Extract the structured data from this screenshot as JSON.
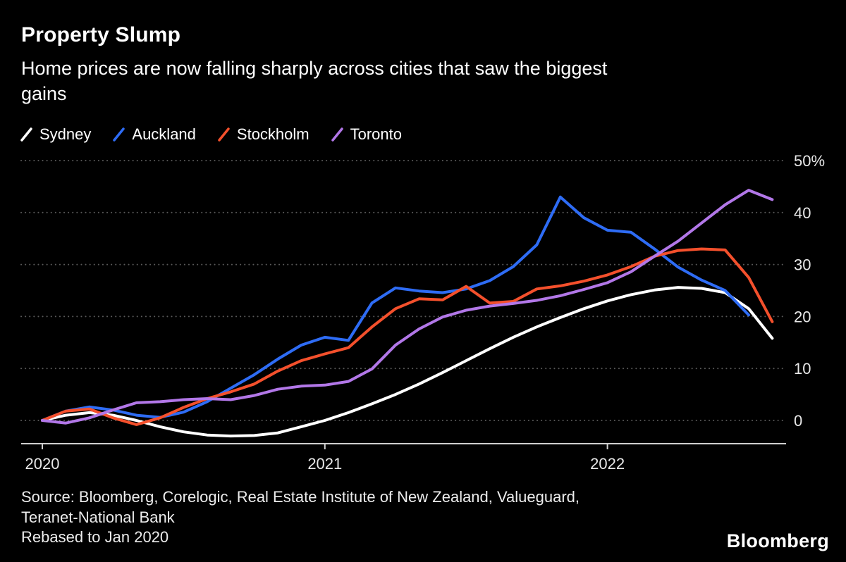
{
  "header": {
    "title": "Property Slump",
    "subtitle_line1": "Home prices are now falling sharply across cities that saw the biggest",
    "subtitle_line2": "gains"
  },
  "footer": {
    "source_line1": "Source: Bloomberg, Corelogic, Real Estate Institute of New Zealand, Valueguard,",
    "source_line2": "Teranet-National Bank",
    "note": "Rebased to Jan 2020",
    "logo": "Bloomberg"
  },
  "chart_data": {
    "type": "line",
    "title": "Property Slump",
    "subtitle": "Home prices are now falling sharply across cities that saw the biggest gains",
    "note": "Rebased to Jan 2020",
    "grid": "dotted horizontal gridlines",
    "legend_position": "top-left",
    "x_axis": {
      "unit": "months since Jan 2020",
      "ticks": [
        {
          "month": 0,
          "label": "2020"
        },
        {
          "month": 12,
          "label": "2021"
        },
        {
          "month": 24,
          "label": "2022"
        }
      ]
    },
    "y_axis": {
      "unit": "% change since Jan 2020",
      "range": [
        -5,
        52
      ],
      "ticks": [
        {
          "value": 0,
          "label": "0"
        },
        {
          "value": 10,
          "label": "10"
        },
        {
          "value": 20,
          "label": "20"
        },
        {
          "value": 30,
          "label": "30"
        },
        {
          "value": 40,
          "label": "40"
        },
        {
          "value": 50,
          "label": "50%"
        }
      ]
    },
    "series": [
      {
        "name": "Sydney",
        "color": "#ffffff",
        "values": [
          0,
          1.0,
          1.5,
          1.0,
          0,
          -1.2,
          -2.2,
          -2.8,
          -3.0,
          -2.9,
          -2.4,
          -1.2,
          0,
          1.5,
          3.2,
          5.0,
          7.0,
          9.2,
          11.5,
          13.8,
          16.0,
          18.0,
          19.8,
          21.5,
          23.0,
          24.2,
          25.1,
          25.6,
          25.4,
          24.6,
          21.5,
          15.8
        ]
      },
      {
        "name": "Auckland",
        "color": "#2e6cf5",
        "values": [
          0,
          1.8,
          2.6,
          2.0,
          1.0,
          0.6,
          1.6,
          3.6,
          6.2,
          8.8,
          11.8,
          14.5,
          16.0,
          15.4,
          22.6,
          25.5,
          24.9,
          24.6,
          25.3,
          26.9,
          29.6,
          33.8,
          43.0,
          39.0,
          36.6,
          36.2,
          33.0,
          29.5,
          27.0,
          25.0,
          20.3
        ]
      },
      {
        "name": "Stockholm",
        "color": "#f4502c",
        "values": [
          0,
          1.8,
          2.2,
          0.5,
          -0.8,
          0.5,
          2.5,
          4.2,
          5.5,
          7.0,
          9.5,
          11.5,
          12.8,
          14.0,
          18.0,
          21.5,
          23.4,
          23.2,
          25.8,
          22.6,
          22.9,
          25.3,
          25.9,
          26.8,
          28.0,
          29.6,
          31.6,
          32.7,
          33.0,
          32.8,
          27.5,
          19.0
        ]
      },
      {
        "name": "Toronto",
        "color": "#b277e8",
        "values": [
          0,
          -0.5,
          0.5,
          2.0,
          3.4,
          3.6,
          4.0,
          4.2,
          4.0,
          4.8,
          6.0,
          6.6,
          6.8,
          7.5,
          9.9,
          14.5,
          17.6,
          19.9,
          21.2,
          22.0,
          22.5,
          23.1,
          24.0,
          25.2,
          26.5,
          28.6,
          31.6,
          34.5,
          38.0,
          41.5,
          44.3,
          42.5
        ]
      }
    ]
  }
}
